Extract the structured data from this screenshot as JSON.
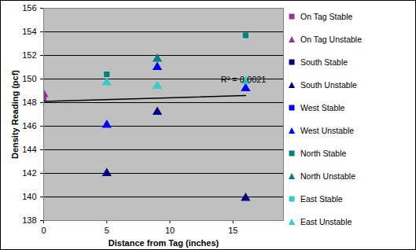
{
  "chart_data": {
    "type": "scatter",
    "x_label": "Distance from Tag (inches)",
    "y_label": "Density Reading (pcf)",
    "xlim": [
      0,
      19
    ],
    "xticks": [
      0,
      5,
      10,
      15
    ],
    "ylim": [
      138,
      156
    ],
    "yticks": [
      138,
      140,
      142,
      144,
      146,
      148,
      150,
      152,
      154,
      156
    ],
    "grid": true,
    "legend": "right",
    "series": [
      {
        "name": "On Tag Stable",
        "color": "#993399",
        "marker": "square",
        "x": [
          0
        ],
        "values": [
          148.4
        ]
      },
      {
        "name": "On Tag Unstable",
        "color": "#993399",
        "marker": "triangle",
        "x": [
          0
        ],
        "values": [
          148.7
        ]
      },
      {
        "name": "South Stable",
        "color": "#000080",
        "marker": "square",
        "x": [],
        "values": []
      },
      {
        "name": "South Unstable",
        "color": "#000080",
        "marker": "triangle",
        "x": [
          5,
          9,
          16
        ],
        "values": [
          142.0,
          147.2,
          139.9
        ]
      },
      {
        "name": "West Stable",
        "color": "#0000ff",
        "marker": "square",
        "x": [],
        "values": []
      },
      {
        "name": "West Unstable",
        "color": "#0000ff",
        "marker": "triangle",
        "x": [
          5,
          9,
          16
        ],
        "values": [
          146.1,
          151.0,
          149.2
        ]
      },
      {
        "name": "North Stable",
        "color": "#008080",
        "marker": "square",
        "x": [
          5,
          16
        ],
        "values": [
          150.4,
          153.7
        ]
      },
      {
        "name": "North Unstable",
        "color": "#008080",
        "marker": "triangle",
        "x": [
          9
        ],
        "values": [
          151.7
        ]
      },
      {
        "name": "East Stable",
        "color": "#33cccc",
        "marker": "square",
        "x": [],
        "values": []
      },
      {
        "name": "East Unstable",
        "color": "#33cccc",
        "marker": "triangle",
        "x": [
          5,
          9,
          16
        ],
        "values": [
          149.7,
          149.4,
          149.8
        ]
      }
    ],
    "trendline": {
      "type": "line",
      "color": "#000000",
      "x": [
        0,
        16
      ],
      "values": [
        148.1,
        148.6
      ]
    },
    "annotations": [
      "R² = 0.0021"
    ]
  }
}
